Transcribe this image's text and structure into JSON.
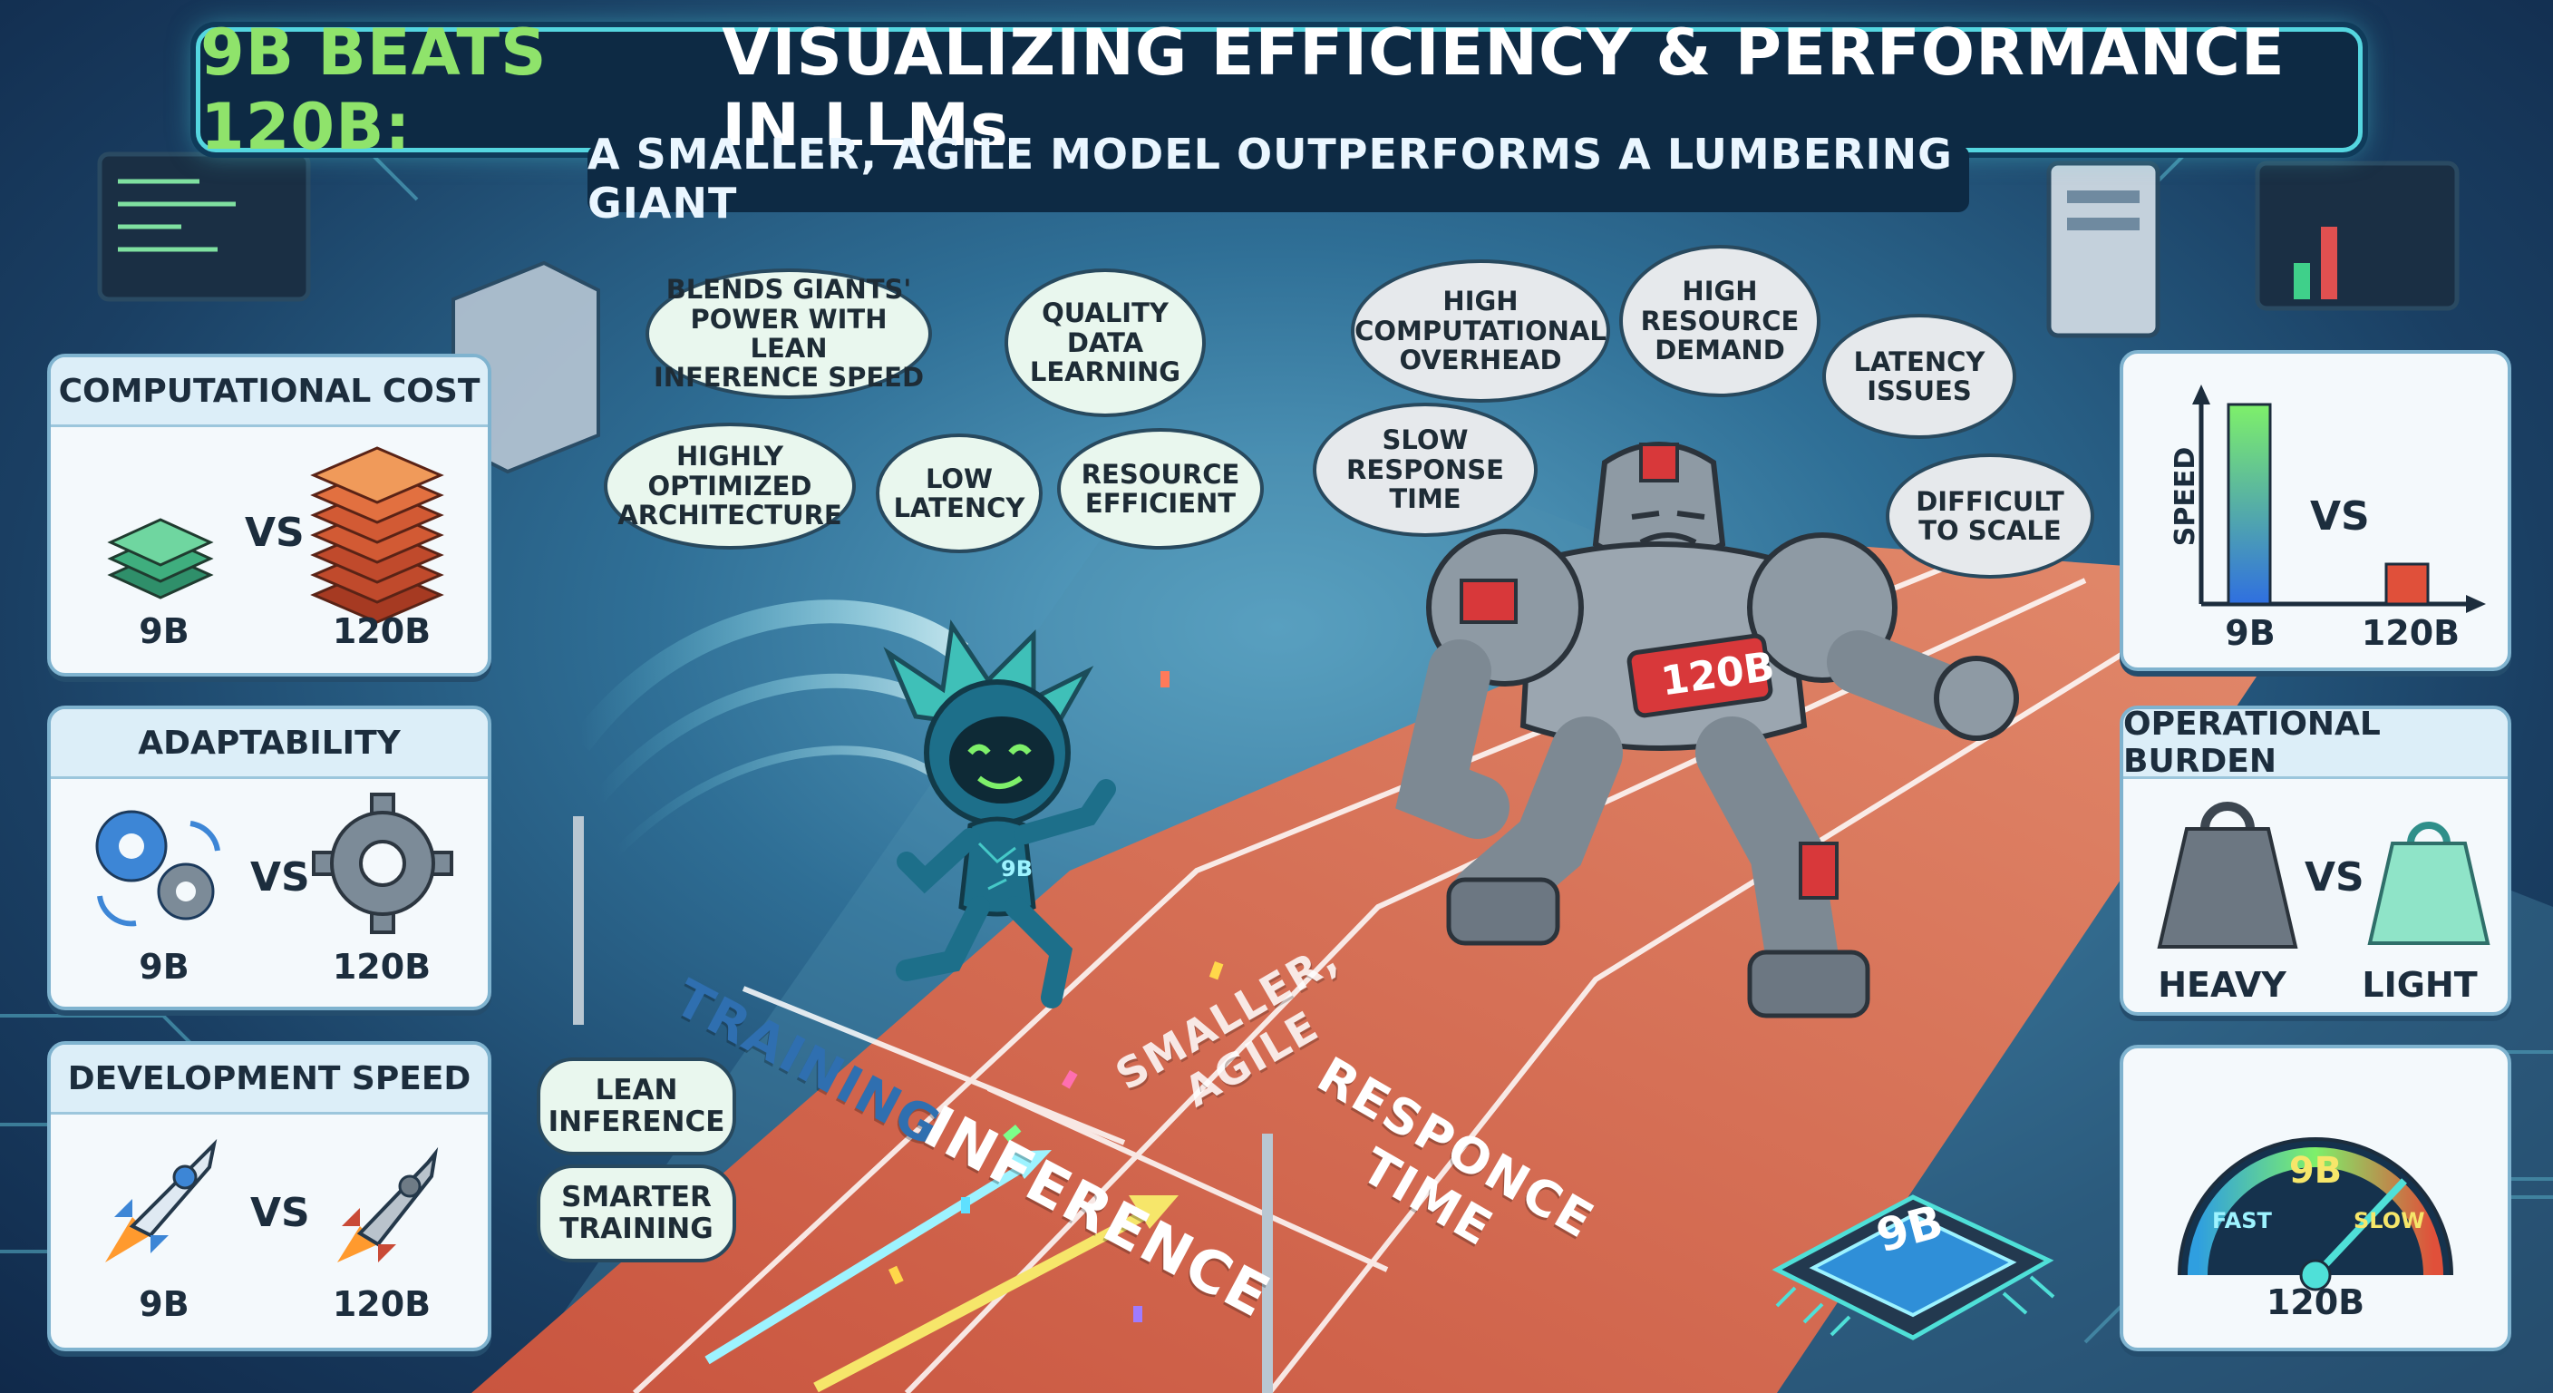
{
  "title": {
    "highlight": "9B BEATS 120B:",
    "main": "VISUALIZING EFFICIENCY & PERFORMANCE IN LLMs",
    "subtitle": "A SMALLER, AGILE MODEL OUTPERFORMS A LUMBERING GIANT"
  },
  "left_panels": [
    {
      "heading": "COMPUTATIONAL COST",
      "left_label": "9B",
      "vs": "VS",
      "right_label": "120B"
    },
    {
      "heading": "ADAPTABILITY",
      "left_label": "9B",
      "vs": "VS",
      "right_label": "120B"
    },
    {
      "heading": "DEVELOPMENT SPEED",
      "left_label": "9B",
      "vs": "VS",
      "right_label": "120B"
    }
  ],
  "right_panels": {
    "speed": {
      "axis_label": "SPEED",
      "vs": "VS",
      "left_label": "9B",
      "right_label": "120B",
      "bar_9b": 1.0,
      "bar_120b": 0.2
    },
    "burden": {
      "heading": "OPERATIONAL BURDEN",
      "vs": "VS",
      "left_label": "HEAVY",
      "right_label": "LIGHT"
    },
    "gauge": {
      "center_label": "9B",
      "fast": "FAST",
      "slow": "SLOW",
      "bottom_label": "120B"
    }
  },
  "small_bubbles": [
    "BLENDS GIANTS'\nPOWER WITH LEAN\nINFERENCE SPEED",
    "QUALITY\nDATA\nLEARNING",
    "HIGHLY\nOPTIMIZED\nARCHITECTURE",
    "LOW\nLATENCY",
    "RESOURCE\nEFFICIENT"
  ],
  "giant_bubbles": [
    "HIGH\nCOMPUTATIONAL\nOVERHEAD",
    "HIGH\nRESOURCE\nDEMAND",
    "LATENCY\nISSUES",
    "SLOW\nRESPONSE\nTIME",
    "DIFFICULT\nTO SCALE"
  ],
  "side_bubbles": [
    "LEAN\nINFERENCE",
    "SMARTER\nTRAINING"
  ],
  "track": {
    "training": "TRAINING",
    "inference": "INFERENCE",
    "agile": "SMALLER,\nAGILE",
    "responce": "RESPONCE\nTIME"
  },
  "characters": {
    "small_chest": "9B",
    "giant_chest": "120B",
    "chip": "9B"
  },
  "colors": {
    "accent_green": "#8fe36b",
    "title_bg": "#0d2a44",
    "glow": "#55d6e0",
    "track": "#d9705a"
  }
}
